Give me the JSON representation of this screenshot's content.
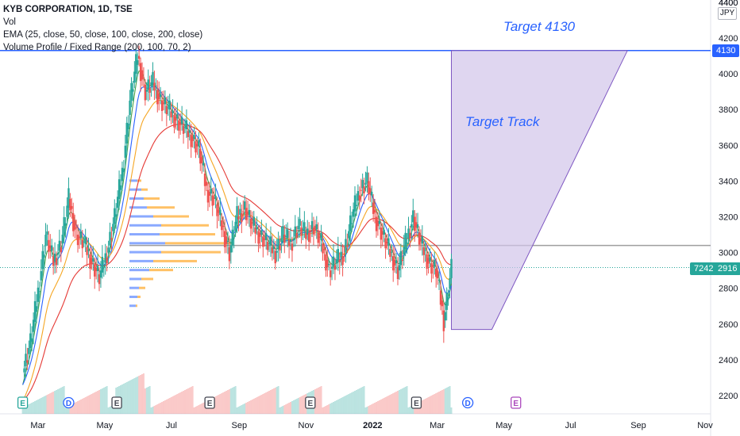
{
  "header": {
    "title_line": "KYB CORPORATION, 1D, TSE",
    "indicator_vol": "Vol",
    "indicator_ema": "EMA (25, close, 50, close, 100, close, 200, close)",
    "indicator_vp": "Volume Profile / Fixed Range (200, 100, 70, 2)"
  },
  "price_axis": {
    "currency": "JPY",
    "top_partial": "4400",
    "current_price_tag": "2916",
    "volume_tag": "7242",
    "target_tag": "4130"
  },
  "annotations": {
    "target_label": "Target 4130",
    "track_label": "Target Track"
  },
  "colors": {
    "up": "#26a69a",
    "down": "#ef5350",
    "ema25": "#43a047",
    "ema50": "#2962ff",
    "ema100": "#f5a623",
    "ema200": "#e53935",
    "target_line": "#2962ff",
    "track_fill": "#d1c4e9",
    "track_stroke": "#7e57c2",
    "vp_blue": "#2962ff",
    "vp_orange": "#ff9800",
    "event_d": "#2962ff",
    "event_e_green": "#26a69a",
    "event_e_dark": "#434651",
    "event_e_purple": "#ab47bc"
  },
  "chart_data": {
    "type": "candlestick",
    "symbol": "KYB CORPORATION",
    "interval": "1D",
    "exchange": "TSE",
    "ylim": [
      2100,
      4420
    ],
    "y_ticks": [
      2200,
      2400,
      2600,
      2800,
      3000,
      3200,
      3400,
      3600,
      3800,
      4000,
      4200,
      4400
    ],
    "x_ticks": [
      "Mar",
      "May",
      "Jul",
      "Sep",
      "Nov",
      "2022",
      "Mar",
      "May",
      "Jul",
      "Sep",
      "Nov"
    ],
    "price_path": [
      [
        "2021-02-15",
        2330
      ],
      [
        "2021-02-22",
        2500
      ],
      [
        "2021-03-01",
        2780
      ],
      [
        "2021-03-08",
        3100
      ],
      [
        "2021-03-15",
        2950
      ],
      [
        "2021-03-22",
        3050
      ],
      [
        "2021-03-29",
        3300
      ],
      [
        "2021-04-05",
        3100
      ],
      [
        "2021-04-12",
        3050
      ],
      [
        "2021-04-19",
        2950
      ],
      [
        "2021-04-26",
        2860
      ],
      [
        "2021-05-03",
        3000
      ],
      [
        "2021-05-10",
        3200
      ],
      [
        "2021-05-17",
        3450
      ],
      [
        "2021-05-24",
        3850
      ],
      [
        "2021-05-31",
        4100
      ],
      [
        "2021-06-07",
        3900
      ],
      [
        "2021-06-14",
        3950
      ],
      [
        "2021-06-21",
        3850
      ],
      [
        "2021-06-28",
        3800
      ],
      [
        "2021-07-05",
        3750
      ],
      [
        "2021-07-12",
        3700
      ],
      [
        "2021-07-19",
        3650
      ],
      [
        "2021-07-26",
        3580
      ],
      [
        "2021-08-02",
        3350
      ],
      [
        "2021-08-09",
        3300
      ],
      [
        "2021-08-16",
        3150
      ],
      [
        "2021-08-23",
        3000
      ],
      [
        "2021-08-30",
        3200
      ],
      [
        "2021-09-06",
        3250
      ],
      [
        "2021-09-13",
        3150
      ],
      [
        "2021-09-20",
        3100
      ],
      [
        "2021-09-27",
        3050
      ],
      [
        "2021-10-04",
        3000
      ],
      [
        "2021-10-11",
        3100
      ],
      [
        "2021-10-18",
        3050
      ],
      [
        "2021-10-25",
        3150
      ],
      [
        "2021-11-01",
        3100
      ],
      [
        "2021-11-08",
        3150
      ],
      [
        "2021-11-15",
        3050
      ],
      [
        "2021-11-22",
        2900
      ],
      [
        "2021-11-29",
        2950
      ],
      [
        "2021-12-06",
        3000
      ],
      [
        "2021-12-13",
        3200
      ],
      [
        "2021-12-20",
        3350
      ],
      [
        "2021-12-27",
        3400
      ],
      [
        "2022-01-03",
        3200
      ],
      [
        "2022-01-10",
        3100
      ],
      [
        "2022-01-17",
        3000
      ],
      [
        "2022-01-24",
        2900
      ],
      [
        "2022-01-31",
        3050
      ],
      [
        "2022-02-07",
        3200
      ],
      [
        "2022-02-14",
        3050
      ],
      [
        "2022-02-21",
        2950
      ],
      [
        "2022-02-28",
        2900
      ],
      [
        "2022-03-07",
        2620
      ],
      [
        "2022-03-14",
        2916
      ]
    ],
    "last_price": 2916,
    "last_volume": 7242,
    "horizontal_levels": [
      {
        "label": "4130",
        "value": 4130
      },
      {
        "value": 3040
      }
    ],
    "target_track_polygon": [
      [
        "2022-03-14",
        4130
      ],
      [
        "2022-08-22",
        4130
      ],
      [
        "2022-04-20",
        2570
      ],
      [
        "2022-03-14",
        2570
      ]
    ],
    "events": [
      {
        "type": "E",
        "date": "2021-02-15"
      },
      {
        "type": "D",
        "date": "2021-03-29"
      },
      {
        "type": "E",
        "date": "2021-05-12"
      },
      {
        "type": "E",
        "date": "2021-08-05"
      },
      {
        "type": "E",
        "date": "2021-11-05"
      },
      {
        "type": "E",
        "date": "2022-02-10"
      },
      {
        "type": "D",
        "date": "2022-03-29"
      },
      {
        "type": "E",
        "date": "2022-05-12"
      }
    ],
    "series": [
      {
        "name": "EMA 25"
      },
      {
        "name": "EMA 50"
      },
      {
        "name": "EMA 100"
      },
      {
        "name": "EMA 200"
      }
    ]
  }
}
